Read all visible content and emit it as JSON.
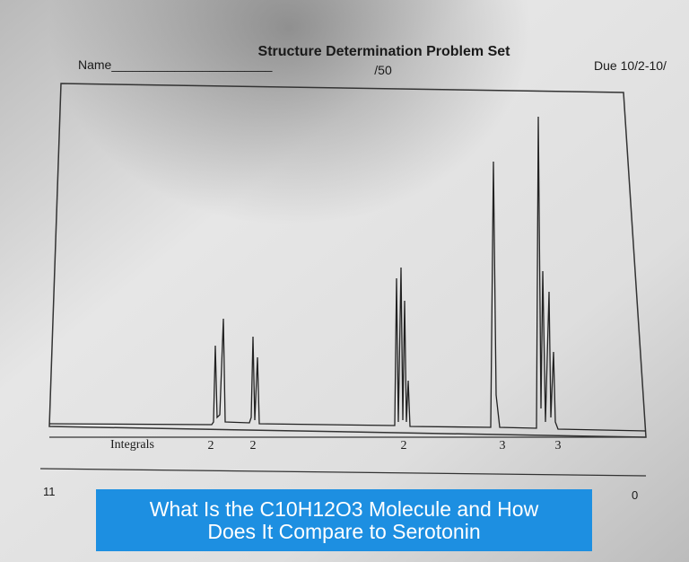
{
  "header": {
    "title": "Structure Determination Problem Set",
    "name_label": "Name_______________________",
    "score": "/50",
    "due": "Due 10/2-10/"
  },
  "spectrum": {
    "integrals_label": "Integrals",
    "integrals": [
      2,
      2,
      2,
      3,
      3
    ],
    "axis_labels": [
      "11",
      "0"
    ]
  },
  "caption": "What Is the C10H12O3 Molecule and How Does It Compare to Serotonin"
}
